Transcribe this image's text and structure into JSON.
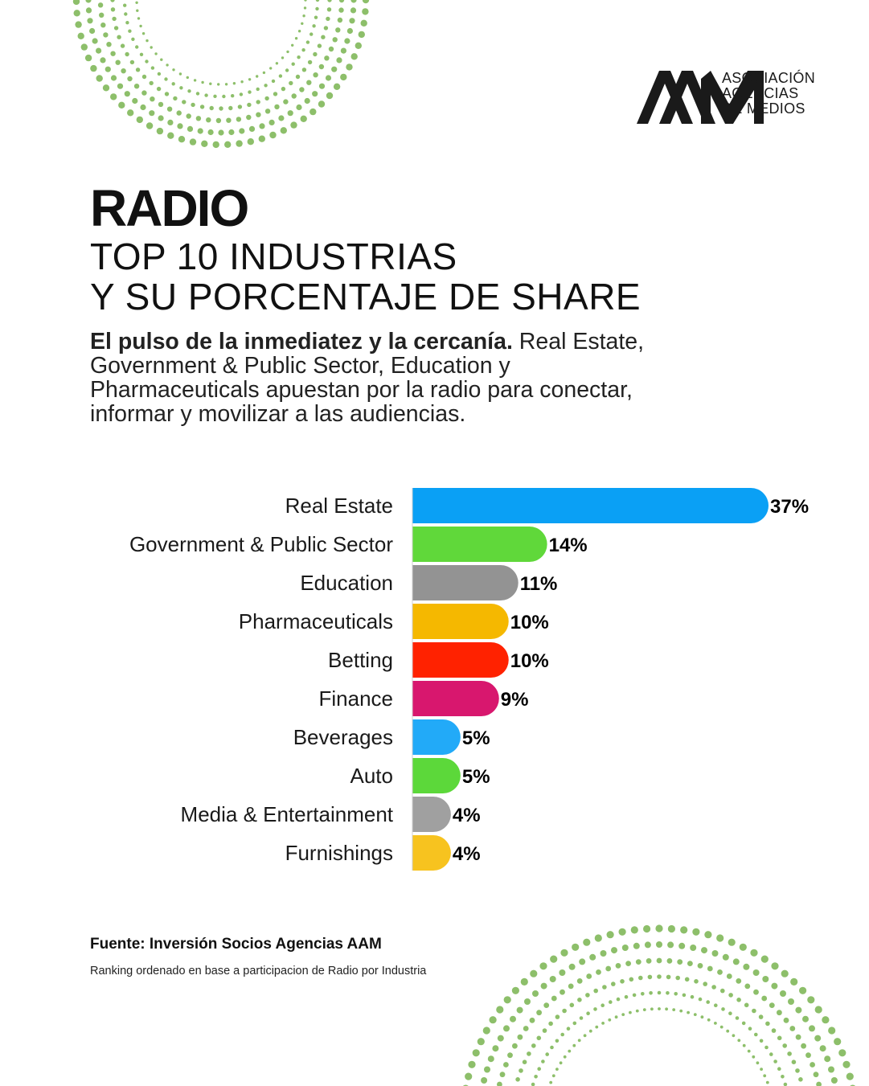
{
  "logo": {
    "line1": "ASOCIACIÓN",
    "line2": "AGENCIAS",
    "line3": "DE MEDIOS"
  },
  "header": {
    "title": "RADIO",
    "subtitle_line1": "TOP 10 INDUSTRIAS",
    "subtitle_line2": "Y SU PORCENTAJE DE SHARE"
  },
  "intro": {
    "bold": "El pulso de la inmediatez y la cercanía.",
    "rest": " Real Estate, Government & Public Sector, Education y Pharmaceuticals apuestan por la radio para conectar, informar y movilizar a las audiencias."
  },
  "chart_data": {
    "type": "bar",
    "orientation": "horizontal",
    "categories": [
      "Real Estate",
      "Government & Public Sector",
      "Education",
      "Pharmaceuticals",
      "Betting",
      "Finance",
      "Beverages",
      "Auto",
      "Media & Entertainment",
      "Furnishings"
    ],
    "values": [
      37,
      14,
      11,
      10,
      10,
      9,
      5,
      5,
      4,
      4
    ],
    "value_labels": [
      "37%",
      "14%",
      "11%",
      "10%",
      "10%",
      "9%",
      "5%",
      "5%",
      "4%",
      "4%"
    ],
    "colors": [
      "#0aa0f5",
      "#60d83a",
      "#939393",
      "#f5b800",
      "#ff2200",
      "#d8176e",
      "#22aaf8",
      "#5cd83a",
      "#a0a0a0",
      "#f7c31f"
    ],
    "xlim": [
      0,
      37
    ],
    "grid": false,
    "legend": "none"
  },
  "footer": {
    "source": "Fuente: Inversión Socios Agencias AAM",
    "note": "Ranking ordenado en base a participacion de Radio por Industria"
  },
  "colors": {
    "accent_dots": "#8dbf6a",
    "text": "#111111"
  }
}
